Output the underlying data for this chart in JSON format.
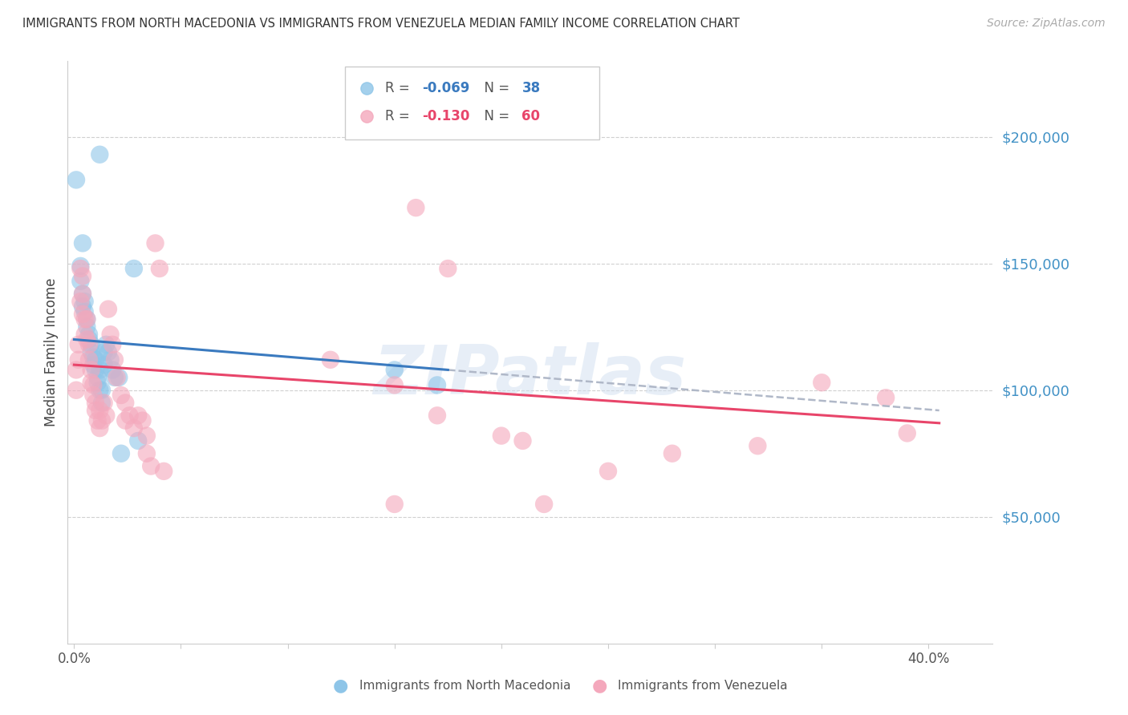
{
  "title": "IMMIGRANTS FROM NORTH MACEDONIA VS IMMIGRANTS FROM VENEZUELA MEDIAN FAMILY INCOME CORRELATION CHART",
  "source": "Source: ZipAtlas.com",
  "ylabel": "Median Family Income",
  "ytick_labels": [
    "$50,000",
    "$100,000",
    "$150,000",
    "$200,000"
  ],
  "ytick_values": [
    50000,
    100000,
    150000,
    200000
  ],
  "ymin": 0,
  "ymax": 230000,
  "xmin": -0.003,
  "xmax": 0.43,
  "legend_label_blue": "Immigrants from North Macedonia",
  "legend_label_pink": "Immigrants from Venezuela",
  "watermark": "ZIPatlas",
  "blue_R": -0.069,
  "pink_R": -0.13,
  "blue_N": 38,
  "pink_N": 60,
  "blue_scatter": [
    [
      0.001,
      183000
    ],
    [
      0.012,
      193000
    ],
    [
      0.004,
      158000
    ],
    [
      0.003,
      149000
    ],
    [
      0.003,
      143000
    ],
    [
      0.004,
      138000
    ],
    [
      0.004,
      133000
    ],
    [
      0.005,
      135000
    ],
    [
      0.005,
      131000
    ],
    [
      0.006,
      128000
    ],
    [
      0.006,
      125000
    ],
    [
      0.007,
      122000
    ],
    [
      0.007,
      120000
    ],
    [
      0.008,
      118000
    ],
    [
      0.008,
      115000
    ],
    [
      0.009,
      113000
    ],
    [
      0.009,
      110000
    ],
    [
      0.01,
      112000
    ],
    [
      0.01,
      108000
    ],
    [
      0.011,
      105000
    ],
    [
      0.011,
      103000
    ],
    [
      0.012,
      108000
    ],
    [
      0.012,
      100000
    ],
    [
      0.013,
      100000
    ],
    [
      0.013,
      95000
    ],
    [
      0.014,
      115000
    ],
    [
      0.014,
      110000
    ],
    [
      0.015,
      118000
    ],
    [
      0.016,
      115000
    ],
    [
      0.017,
      112000
    ],
    [
      0.018,
      108000
    ],
    [
      0.019,
      105000
    ],
    [
      0.021,
      105000
    ],
    [
      0.022,
      75000
    ],
    [
      0.028,
      148000
    ],
    [
      0.03,
      80000
    ],
    [
      0.15,
      108000
    ],
    [
      0.17,
      102000
    ]
  ],
  "pink_scatter": [
    [
      0.001,
      108000
    ],
    [
      0.001,
      100000
    ],
    [
      0.002,
      118000
    ],
    [
      0.002,
      112000
    ],
    [
      0.003,
      148000
    ],
    [
      0.003,
      135000
    ],
    [
      0.004,
      145000
    ],
    [
      0.004,
      138000
    ],
    [
      0.004,
      130000
    ],
    [
      0.005,
      128000
    ],
    [
      0.005,
      122000
    ],
    [
      0.006,
      128000
    ],
    [
      0.006,
      120000
    ],
    [
      0.007,
      118000
    ],
    [
      0.007,
      112000
    ],
    [
      0.008,
      108000
    ],
    [
      0.008,
      103000
    ],
    [
      0.009,
      102000
    ],
    [
      0.009,
      98000
    ],
    [
      0.01,
      95000
    ],
    [
      0.01,
      92000
    ],
    [
      0.011,
      88000
    ],
    [
      0.012,
      92000
    ],
    [
      0.012,
      85000
    ],
    [
      0.013,
      88000
    ],
    [
      0.014,
      95000
    ],
    [
      0.015,
      90000
    ],
    [
      0.016,
      132000
    ],
    [
      0.017,
      122000
    ],
    [
      0.018,
      118000
    ],
    [
      0.019,
      112000
    ],
    [
      0.02,
      105000
    ],
    [
      0.022,
      98000
    ],
    [
      0.024,
      95000
    ],
    [
      0.024,
      88000
    ],
    [
      0.026,
      90000
    ],
    [
      0.028,
      85000
    ],
    [
      0.03,
      90000
    ],
    [
      0.032,
      88000
    ],
    [
      0.034,
      82000
    ],
    [
      0.034,
      75000
    ],
    [
      0.036,
      70000
    ],
    [
      0.038,
      158000
    ],
    [
      0.04,
      148000
    ],
    [
      0.042,
      68000
    ],
    [
      0.12,
      112000
    ],
    [
      0.15,
      102000
    ],
    [
      0.16,
      172000
    ],
    [
      0.17,
      90000
    ],
    [
      0.175,
      148000
    ],
    [
      0.2,
      82000
    ],
    [
      0.21,
      80000
    ],
    [
      0.25,
      68000
    ],
    [
      0.28,
      75000
    ],
    [
      0.32,
      78000
    ],
    [
      0.35,
      103000
    ],
    [
      0.38,
      97000
    ],
    [
      0.39,
      83000
    ],
    [
      0.15,
      55000
    ],
    [
      0.22,
      55000
    ]
  ],
  "blue_color": "#8ec5e8",
  "pink_color": "#f4a8bc",
  "blue_line_color": "#3a7abf",
  "pink_line_color": "#e8456a",
  "dashed_line_color": "#b0b8c8",
  "background_color": "#ffffff",
  "grid_color": "#d0d0d0"
}
